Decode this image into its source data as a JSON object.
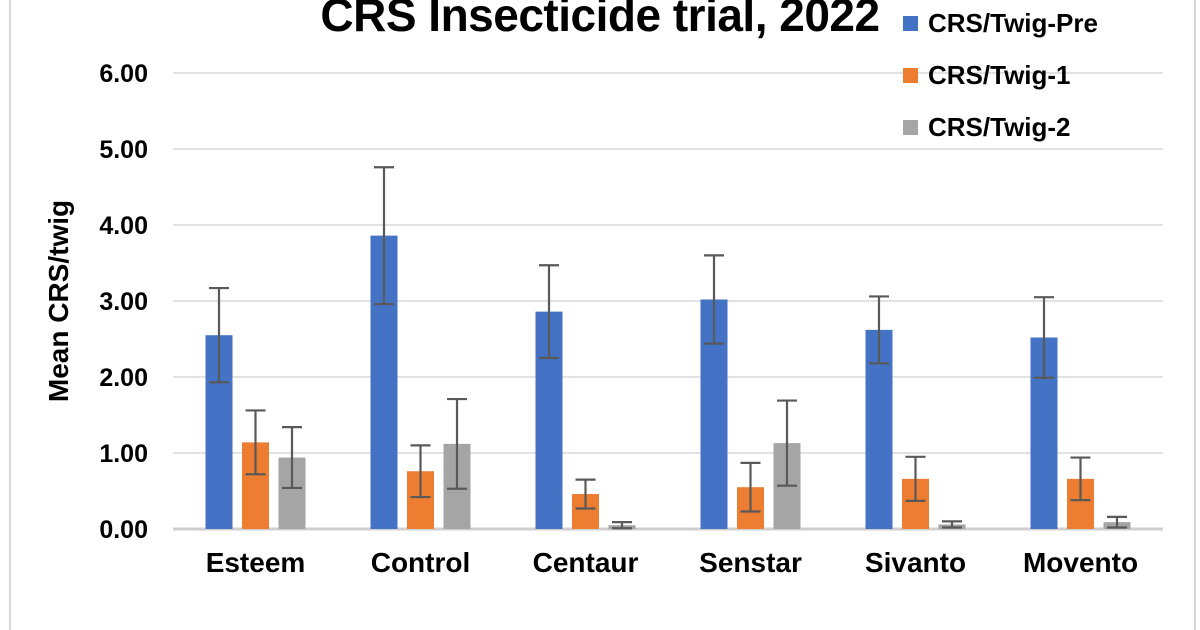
{
  "chart_data": {
    "type": "bar",
    "title": "CRS Insecticide trial, 2022",
    "ylabel": "Mean CRS/twig",
    "xlabel": "",
    "categories": [
      "Esteem",
      "Control",
      "Centaur",
      "Senstar",
      "Sivanto",
      "Movento"
    ],
    "series": [
      {
        "name": "CRS/Twig-Pre",
        "color": "#4472C4",
        "values": [
          2.55,
          3.86,
          2.86,
          3.02,
          2.62,
          2.52
        ],
        "errors": [
          0.62,
          0.9,
          0.61,
          0.58,
          0.44,
          0.53
        ]
      },
      {
        "name": "CRS/Twig-1",
        "color": "#ED7D31",
        "values": [
          1.14,
          0.76,
          0.46,
          0.55,
          0.66,
          0.66
        ],
        "errors": [
          0.42,
          0.34,
          0.19,
          0.32,
          0.29,
          0.28
        ]
      },
      {
        "name": "CRS/Twig-2",
        "color": "#A5A5A5",
        "values": [
          0.94,
          1.12,
          0.05,
          1.13,
          0.06,
          0.09
        ],
        "errors": [
          0.4,
          0.59,
          0.04,
          0.56,
          0.04,
          0.07
        ]
      }
    ],
    "ylim": [
      0,
      6
    ],
    "ytick_step": 1,
    "ytick_labels": [
      "0.00",
      "1.00",
      "2.00",
      "3.00",
      "4.00",
      "5.00",
      "6.00"
    ],
    "grid": true,
    "legend_position": "top-right",
    "error_bars": true,
    "colors": {
      "gridline": "#D9D9D9",
      "baseline": "#D0CECE",
      "error_bar": "#595959",
      "text": "#000000",
      "frame_border": "#D9D9D9"
    }
  }
}
